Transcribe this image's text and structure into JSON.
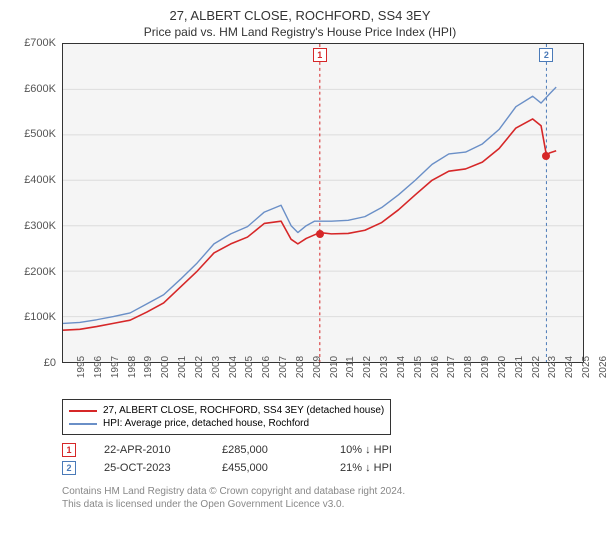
{
  "title": {
    "main": "27, ALBERT CLOSE, ROCHFORD, SS4 3EY",
    "sub": "Price paid vs. HM Land Registry's House Price Index (HPI)"
  },
  "chart": {
    "type": "line",
    "background_color": "#f5f5f5",
    "border_color": "#333333",
    "grid_color": "#dcdcdc",
    "ylim": [
      0,
      700000
    ],
    "ytick_step": 100000,
    "yticks": [
      "£0",
      "£100K",
      "£200K",
      "£300K",
      "£400K",
      "£500K",
      "£600K",
      "£700K"
    ],
    "xlim": [
      1995,
      2026
    ],
    "xticks": [
      1995,
      1996,
      1997,
      1998,
      1999,
      2000,
      2001,
      2002,
      2003,
      2004,
      2005,
      2006,
      2007,
      2008,
      2009,
      2010,
      2011,
      2012,
      2013,
      2014,
      2015,
      2016,
      2017,
      2018,
      2019,
      2020,
      2021,
      2022,
      2023,
      2024,
      2025,
      2026
    ],
    "label_fontsize": 11,
    "series": [
      {
        "name": "price_paid",
        "label": "27, ALBERT CLOSE, ROCHFORD, SS4 3EY (detached house)",
        "color": "#d62728",
        "line_width": 1.6,
        "data": [
          [
            1995,
            70000
          ],
          [
            1996,
            72000
          ],
          [
            1997,
            78000
          ],
          [
            1998,
            85000
          ],
          [
            1999,
            92000
          ],
          [
            2000,
            110000
          ],
          [
            2001,
            130000
          ],
          [
            2002,
            165000
          ],
          [
            2003,
            200000
          ],
          [
            2004,
            240000
          ],
          [
            2005,
            260000
          ],
          [
            2006,
            275000
          ],
          [
            2007,
            305000
          ],
          [
            2008,
            310000
          ],
          [
            2008.6,
            270000
          ],
          [
            2009,
            260000
          ],
          [
            2009.5,
            272000
          ],
          [
            2010,
            280000
          ],
          [
            2010.3,
            285000
          ],
          [
            2011,
            282000
          ],
          [
            2012,
            283000
          ],
          [
            2013,
            290000
          ],
          [
            2014,
            307000
          ],
          [
            2015,
            335000
          ],
          [
            2016,
            368000
          ],
          [
            2017,
            400000
          ],
          [
            2018,
            420000
          ],
          [
            2019,
            425000
          ],
          [
            2020,
            440000
          ],
          [
            2021,
            470000
          ],
          [
            2022,
            515000
          ],
          [
            2023,
            535000
          ],
          [
            2023.5,
            520000
          ],
          [
            2023.82,
            455000
          ],
          [
            2024,
            460000
          ],
          [
            2024.4,
            465000
          ]
        ]
      },
      {
        "name": "hpi",
        "label": "HPI: Average price, detached house, Rochford",
        "color": "#6a8fc7",
        "line_width": 1.4,
        "data": [
          [
            1995,
            85000
          ],
          [
            1996,
            87000
          ],
          [
            1997,
            93000
          ],
          [
            1998,
            100000
          ],
          [
            1999,
            108000
          ],
          [
            2000,
            128000
          ],
          [
            2001,
            148000
          ],
          [
            2002,
            182000
          ],
          [
            2003,
            218000
          ],
          [
            2004,
            260000
          ],
          [
            2005,
            282000
          ],
          [
            2006,
            298000
          ],
          [
            2007,
            330000
          ],
          [
            2008,
            345000
          ],
          [
            2008.6,
            300000
          ],
          [
            2009,
            285000
          ],
          [
            2009.5,
            300000
          ],
          [
            2010,
            310000
          ],
          [
            2011,
            310000
          ],
          [
            2012,
            312000
          ],
          [
            2013,
            320000
          ],
          [
            2014,
            340000
          ],
          [
            2015,
            368000
          ],
          [
            2016,
            400000
          ],
          [
            2017,
            435000
          ],
          [
            2018,
            458000
          ],
          [
            2019,
            462000
          ],
          [
            2020,
            480000
          ],
          [
            2021,
            512000
          ],
          [
            2022,
            562000
          ],
          [
            2023,
            585000
          ],
          [
            2023.5,
            570000
          ],
          [
            2024,
            590000
          ],
          [
            2024.4,
            605000
          ]
        ]
      }
    ],
    "markers": [
      {
        "num": "1",
        "x": 2010.31,
        "color": "#d62728",
        "dot_y": 285000
      },
      {
        "num": "2",
        "x": 2023.82,
        "color": "#4a7ab8",
        "dot_y": 455000
      }
    ]
  },
  "legend": {
    "items": [
      {
        "color": "#d62728",
        "label": "27, ALBERT CLOSE, ROCHFORD, SS4 3EY (detached house)"
      },
      {
        "color": "#6a8fc7",
        "label": "HPI: Average price, detached house, Rochford"
      }
    ]
  },
  "transactions": [
    {
      "num": "1",
      "border_color": "#d62728",
      "date": "22-APR-2010",
      "price": "£285,000",
      "delta": "10% ↓ HPI"
    },
    {
      "num": "2",
      "border_color": "#4a7ab8",
      "date": "25-OCT-2023",
      "price": "£455,000",
      "delta": "21% ↓ HPI"
    }
  ],
  "footer": {
    "line1": "Contains HM Land Registry data © Crown copyright and database right 2024.",
    "line2": "This data is licensed under the Open Government Licence v3.0."
  }
}
